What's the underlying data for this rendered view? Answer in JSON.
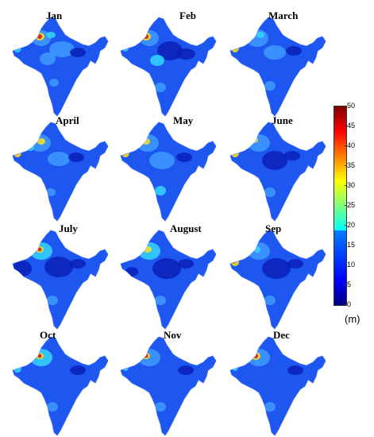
{
  "colors": {
    "base": "#1e56f0",
    "dark": "#0a1fb8",
    "light": "#3f9bff",
    "cyan": "#35d6ff",
    "green": "#7fff6a",
    "yellow": "#ffe21a",
    "red": "#d81010"
  },
  "panels": [
    {
      "label": "Jan"
    },
    {
      "label": "Feb"
    },
    {
      "label": "March"
    },
    {
      "label": "April"
    },
    {
      "label": "May"
    },
    {
      "label": "June"
    },
    {
      "label": "July"
    },
    {
      "label": "August"
    },
    {
      "label": "Sep"
    },
    {
      "label": "Oct"
    },
    {
      "label": "Nov"
    },
    {
      "label": "Dec"
    }
  ],
  "colorbar": {
    "ticks": [
      "50",
      "45",
      "40",
      "35",
      "30",
      "25",
      "20",
      "15",
      "10",
      "5",
      "0"
    ],
    "unit": "(m)",
    "min": 0,
    "max": 50,
    "colormap": "jet"
  }
}
